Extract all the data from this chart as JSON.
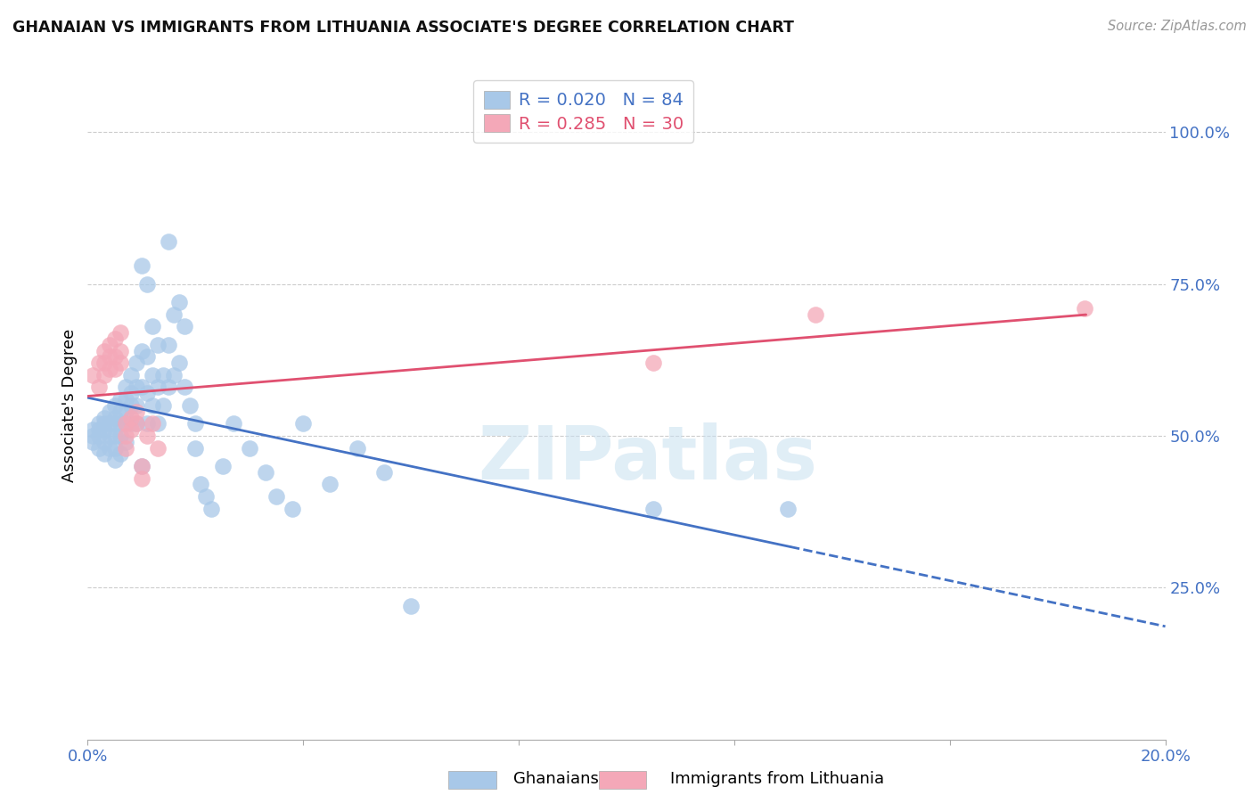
{
  "title": "GHANAIAN VS IMMIGRANTS FROM LITHUANIA ASSOCIATE'S DEGREE CORRELATION CHART",
  "source": "Source: ZipAtlas.com",
  "ylabel": "Associate's Degree",
  "right_ytick_labels": [
    "100.0%",
    "75.0%",
    "50.0%",
    "25.0%"
  ],
  "right_ytick_values": [
    1.0,
    0.75,
    0.5,
    0.25
  ],
  "xlim": [
    0.0,
    0.2
  ],
  "ylim": [
    0.0,
    1.1
  ],
  "xtick_values": [
    0.0,
    0.04,
    0.08,
    0.12,
    0.16,
    0.2
  ],
  "xtick_labels": [
    "0.0%",
    "",
    "",
    "",
    "",
    "20.0%"
  ],
  "ghanaian_color": "#a8c8e8",
  "lithuania_color": "#f4a8b8",
  "ghanaian_line_color": "#4472c4",
  "lithuania_line_color": "#e05070",
  "r_ghana": 0.02,
  "n_ghana": 84,
  "r_lithuania": 0.285,
  "n_lithuania": 30,
  "watermark": "ZIPatlas",
  "ghanaian_x": [
    0.001,
    0.001,
    0.001,
    0.002,
    0.002,
    0.002,
    0.002,
    0.003,
    0.003,
    0.003,
    0.003,
    0.003,
    0.004,
    0.004,
    0.004,
    0.004,
    0.005,
    0.005,
    0.005,
    0.005,
    0.005,
    0.005,
    0.006,
    0.006,
    0.006,
    0.006,
    0.006,
    0.007,
    0.007,
    0.007,
    0.007,
    0.007,
    0.008,
    0.008,
    0.008,
    0.008,
    0.009,
    0.009,
    0.009,
    0.009,
    0.01,
    0.01,
    0.01,
    0.01,
    0.011,
    0.011,
    0.011,
    0.011,
    0.012,
    0.012,
    0.012,
    0.013,
    0.013,
    0.013,
    0.014,
    0.014,
    0.015,
    0.015,
    0.015,
    0.016,
    0.016,
    0.017,
    0.017,
    0.018,
    0.018,
    0.019,
    0.02,
    0.02,
    0.021,
    0.022,
    0.023,
    0.025,
    0.027,
    0.03,
    0.033,
    0.035,
    0.038,
    0.04,
    0.045,
    0.05,
    0.055,
    0.06,
    0.105,
    0.13
  ],
  "ghanaian_y": [
    0.51,
    0.5,
    0.49,
    0.52,
    0.51,
    0.5,
    0.48,
    0.53,
    0.52,
    0.51,
    0.49,
    0.47,
    0.54,
    0.52,
    0.5,
    0.48,
    0.55,
    0.53,
    0.52,
    0.5,
    0.48,
    0.46,
    0.56,
    0.54,
    0.52,
    0.5,
    0.47,
    0.58,
    0.56,
    0.54,
    0.52,
    0.49,
    0.6,
    0.57,
    0.55,
    0.52,
    0.62,
    0.58,
    0.55,
    0.52,
    0.78,
    0.64,
    0.58,
    0.45,
    0.75,
    0.63,
    0.57,
    0.52,
    0.68,
    0.6,
    0.55,
    0.65,
    0.58,
    0.52,
    0.6,
    0.55,
    0.82,
    0.65,
    0.58,
    0.7,
    0.6,
    0.72,
    0.62,
    0.68,
    0.58,
    0.55,
    0.52,
    0.48,
    0.42,
    0.4,
    0.38,
    0.45,
    0.52,
    0.48,
    0.44,
    0.4,
    0.38,
    0.52,
    0.42,
    0.48,
    0.44,
    0.22,
    0.38,
    0.38
  ],
  "lithuania_x": [
    0.001,
    0.002,
    0.002,
    0.003,
    0.003,
    0.003,
    0.004,
    0.004,
    0.004,
    0.005,
    0.005,
    0.005,
    0.006,
    0.006,
    0.006,
    0.007,
    0.007,
    0.007,
    0.008,
    0.008,
    0.009,
    0.009,
    0.01,
    0.01,
    0.011,
    0.012,
    0.013,
    0.105,
    0.135,
    0.185
  ],
  "lithuania_y": [
    0.6,
    0.62,
    0.58,
    0.64,
    0.62,
    0.6,
    0.65,
    0.63,
    0.61,
    0.66,
    0.63,
    0.61,
    0.67,
    0.64,
    0.62,
    0.52,
    0.5,
    0.48,
    0.53,
    0.51,
    0.54,
    0.52,
    0.45,
    0.43,
    0.5,
    0.52,
    0.48,
    0.62,
    0.7,
    0.71
  ]
}
